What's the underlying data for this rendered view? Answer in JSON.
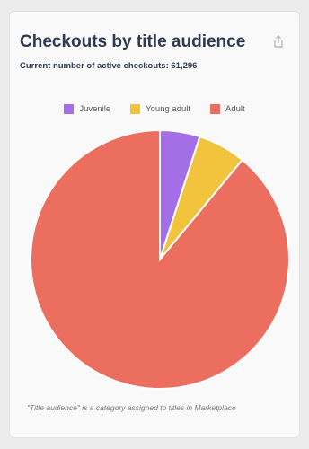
{
  "card": {
    "title": "Checkouts by title audience",
    "subtitle": "Current number of active checkouts: 61,296",
    "footnote": "\"Title audience\" is a category assigned to titles in Marketplace",
    "export_icon": "share-export-icon"
  },
  "colors": {
    "juvenile": "#a36ee6",
    "young_adult": "#f2c43d",
    "adult": "#ec6e5e",
    "title": "#2f3a52"
  },
  "chart_data": {
    "type": "pie",
    "title": "Checkouts by title audience",
    "legend_position": "top",
    "slices": [
      {
        "name": "Juvenile",
        "value": 5,
        "color": "#a36ee6"
      },
      {
        "name": "Young adult",
        "value": 6,
        "color": "#f2c43d"
      },
      {
        "name": "Adult",
        "value": 89,
        "color": "#ec6e5e"
      }
    ]
  }
}
